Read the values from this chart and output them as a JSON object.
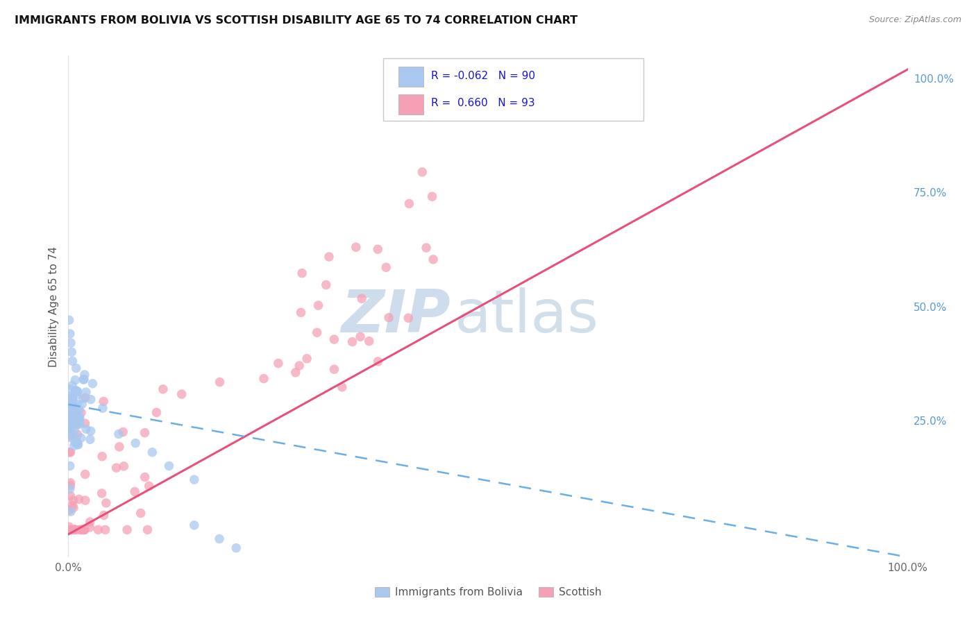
{
  "title": "IMMIGRANTS FROM BOLIVIA VS SCOTTISH DISABILITY AGE 65 TO 74 CORRELATION CHART",
  "source": "Source: ZipAtlas.com",
  "ylabel": "Disability Age 65 to 74",
  "legend_label1": "Immigrants from Bolivia",
  "legend_label2": "Scottish",
  "r1": "-0.062",
  "n1": "90",
  "r2": "0.660",
  "n2": "93",
  "color_bolivia": "#a8c8f0",
  "color_scottish": "#f5a0b5",
  "color_line_bolivia": "#6aaee8",
  "color_line_scottish": "#e8507a",
  "background": "#ffffff",
  "grid_color": "#e0e0ec",
  "xlim": [
    0.0,
    1.0
  ],
  "ylim": [
    -0.05,
    1.05
  ],
  "xticks": [
    0.0,
    1.0
  ],
  "xticklabels": [
    "0.0%",
    "100.0%"
  ],
  "yticks_right": [
    0.25,
    0.5,
    0.75,
    1.0
  ],
  "yticklabels_right": [
    "25.0%",
    "50.0%",
    "75.0%",
    "100.0%"
  ],
  "bolivia_trend": [
    0.0,
    1.0,
    0.285,
    -0.05
  ],
  "scottish_trend": [
    0.0,
    1.0,
    0.0,
    1.02
  ],
  "watermark_zip_color": "#c8d8e8",
  "watermark_atlas_color": "#b8d0e8",
  "title_fontsize": 11.5,
  "source_fontsize": 9,
  "tick_fontsize": 11,
  "legend_fontsize": 11
}
